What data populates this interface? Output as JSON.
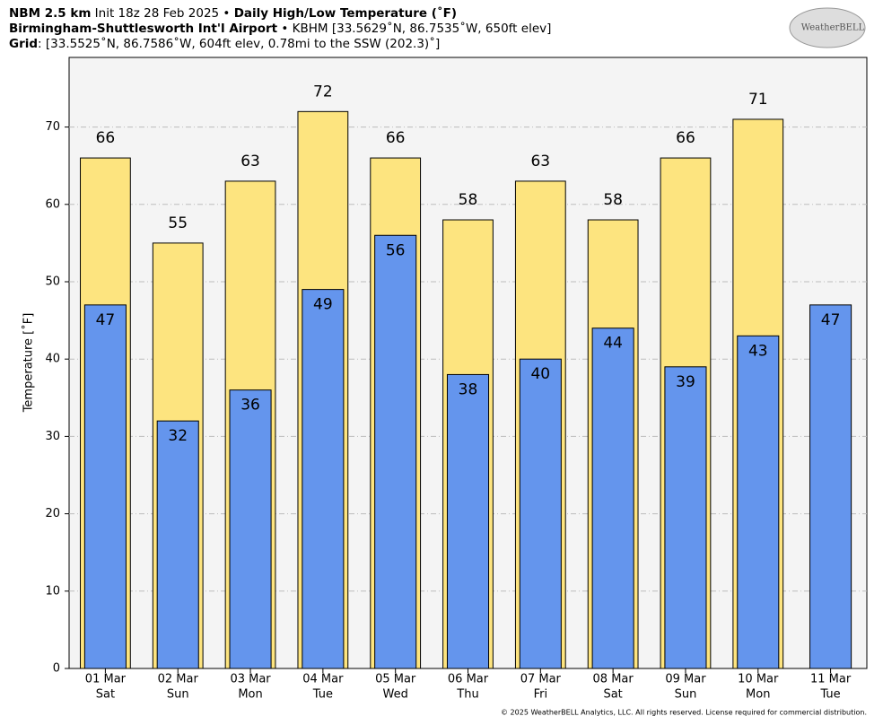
{
  "header": {
    "line1": [
      "NBM 2.5 km",
      " Init 18z 28 Feb 2025 • ",
      "Daily High/Low Temperature (˚F)"
    ],
    "line2": [
      "Birmingham-Shuttlesworth Int'l Airport",
      " • KBHM [33.5629˚N, 86.7535˚W, 650ft elev]"
    ],
    "line3": [
      "Grid",
      ": [33.5525˚N, 86.7586˚W, 604ft elev, 0.78mi to the SSW (202.3)˚]"
    ],
    "logo": "WeatherBELL"
  },
  "chart_data": {
    "type": "bar",
    "categories": [
      "01 Mar",
      "02 Mar",
      "03 Mar",
      "04 Mar",
      "05 Mar",
      "06 Mar",
      "07 Mar",
      "08 Mar",
      "09 Mar",
      "10 Mar",
      "11 Mar"
    ],
    "category_days": [
      "Sat",
      "Sun",
      "Mon",
      "Tue",
      "Wed",
      "Thu",
      "Fri",
      "Sat",
      "Sun",
      "Mon",
      "Tue"
    ],
    "series": [
      {
        "color": "#fde47f",
        "values": [
          66,
          55,
          63,
          72,
          66,
          58,
          63,
          58,
          66,
          71,
          null
        ]
      },
      {
        "color": "#6495ed",
        "values": [
          47,
          32,
          36,
          49,
          56,
          38,
          40,
          44,
          39,
          43,
          47
        ]
      }
    ],
    "ylabel": "Temperature [˚F]",
    "ylim": [
      0,
      79
    ],
    "yticks": [
      0,
      10,
      20,
      30,
      40,
      50,
      60,
      70
    ],
    "grid": true
  },
  "footer": "© 2025 WeatherBELL Analytics, LLC. All rights reserved. License required for commercial distribution."
}
